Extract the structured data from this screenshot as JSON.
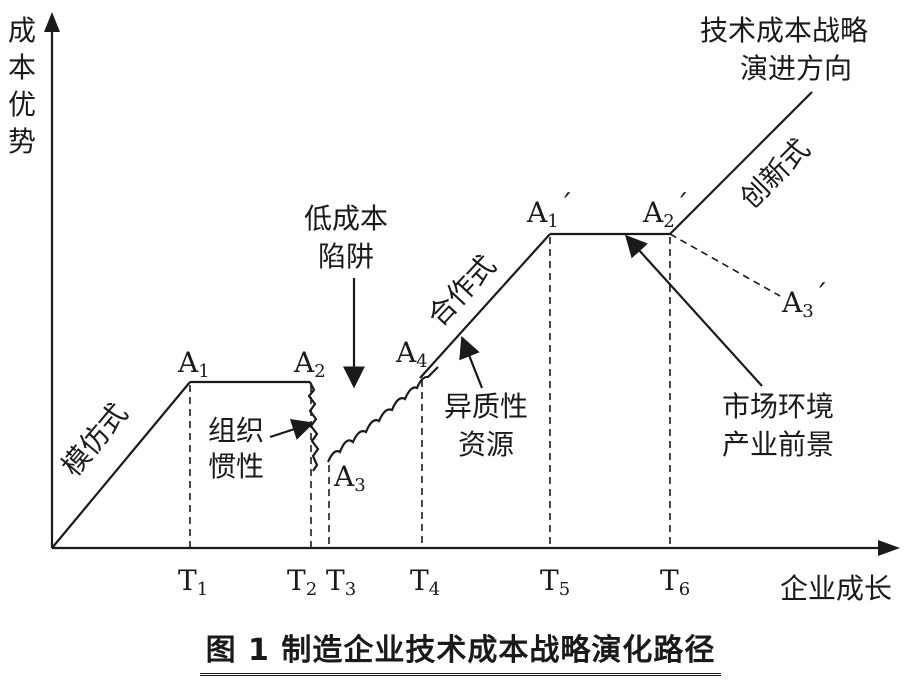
{
  "axes": {
    "y_label": "成本优势",
    "x_label": "企业成长"
  },
  "ticks": [
    {
      "id": "t1",
      "main": "T",
      "sub": "1"
    },
    {
      "id": "t2",
      "main": "T",
      "sub": "2"
    },
    {
      "id": "t3",
      "main": "T",
      "sub": "3"
    },
    {
      "id": "t4",
      "main": "T",
      "sub": "4"
    },
    {
      "id": "t5",
      "main": "T",
      "sub": "5"
    },
    {
      "id": "t6",
      "main": "T",
      "sub": "6"
    }
  ],
  "points": {
    "a1": {
      "main": "A",
      "sub": "1"
    },
    "a2": {
      "main": "A",
      "sub": "2"
    },
    "a3": {
      "main": "A",
      "sub": "3"
    },
    "a4": {
      "main": "A",
      "sub": "4"
    },
    "a1p": {
      "main": "A",
      "sub": "1",
      "prime": "´"
    },
    "a2p": {
      "main": "A",
      "sub": "2",
      "prime": "´"
    },
    "a3p": {
      "main": "A",
      "sub": "3",
      "prime": "´"
    }
  },
  "segments": {
    "imitation": "模仿式",
    "cooperative": "合作式",
    "innovative": "创新式"
  },
  "annotations": {
    "inertia": [
      "组织",
      "惯性"
    ],
    "trap": [
      "低成本",
      "陷阱"
    ],
    "resources": [
      "异质性",
      "资源"
    ],
    "market": [
      "市场环境",
      "产业前景"
    ],
    "direction": [
      "技术成本战略",
      "演进方向"
    ]
  },
  "caption": "图 1   制造企业技术成本战略演化路径"
}
